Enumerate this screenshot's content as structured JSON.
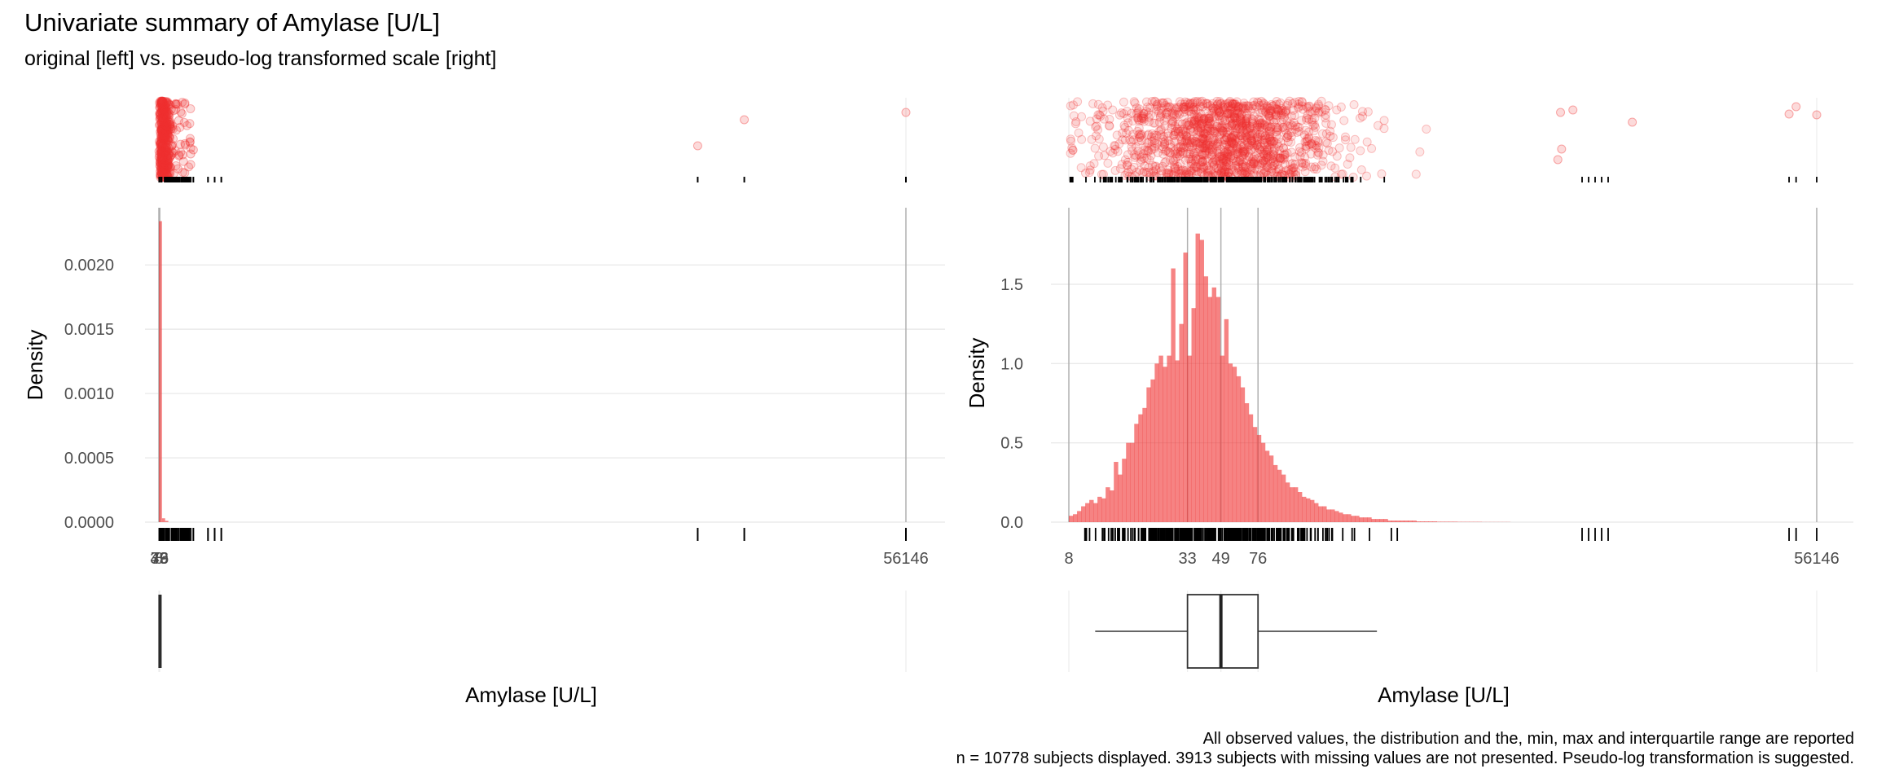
{
  "title": "Univariate summary of Amylase [U/L]",
  "subtitle": "original [left] vs. pseudo-log transformed scale [right]",
  "caption_line1": "All observed values, the distribution and the, min, max and interquartile range are reported",
  "caption_line2": "n = 10778 subjects displayed. 3913 subjects with missing values are not presented. Pseudo-log transformation is suggested.",
  "colors": {
    "fill": "#F03030",
    "grid": "#e6e6e6",
    "vline": "#b0b0b0",
    "rug": "#000000"
  },
  "chart_data": [
    {
      "panel": "left",
      "scale": "original",
      "type": "histogram",
      "xlabel": "Amylase [U/L]",
      "ylabel": "Density",
      "ylim": [
        0,
        0.0024
      ],
      "xlim": [
        8,
        56146
      ],
      "y_ticks": [
        "0.0000",
        "0.0005",
        "0.0010",
        "0.0015",
        "0.0020"
      ],
      "y_tick_values": [
        0,
        0.0005,
        0.001,
        0.0015,
        0.002
      ],
      "x_tick_labels": [
        "8",
        "33",
        "49",
        "76",
        "56146"
      ],
      "x_tick_values": [
        8,
        33,
        49,
        76,
        56146
      ],
      "bins": [
        {
          "x0": 8,
          "x1": 240,
          "density": 0.00234
        },
        {
          "x0": 240,
          "x1": 480,
          "density": 3e-05
        },
        {
          "x0": 480,
          "x1": 720,
          "density": 1e-05
        }
      ],
      "outliers": [
        1500,
        1800,
        2000,
        2400,
        2600,
        3700,
        4200,
        4700,
        40500,
        44000,
        56146
      ],
      "box": {
        "min": 8,
        "q1": 33,
        "median": 49,
        "q3": 76,
        "max": 56146
      },
      "vlines": [
        8,
        33,
        49,
        76,
        56146
      ]
    },
    {
      "panel": "right",
      "scale": "pseudo-log",
      "type": "histogram",
      "xlabel": "Amylase [U/L]",
      "ylabel": "Density",
      "ylim": [
        0,
        1.95
      ],
      "y_ticks": [
        "0.0",
        "0.5",
        "1.0",
        "1.5"
      ],
      "y_tick_values": [
        0,
        0.5,
        1.0,
        1.5
      ],
      "x_tick_labels": [
        "8",
        "33",
        "49",
        "76",
        "56146"
      ],
      "x_tick_values": [
        8,
        33,
        49,
        76,
        56146
      ],
      "bin_densities": [
        0.04,
        0.05,
        0.07,
        0.1,
        0.12,
        0.14,
        0.12,
        0.16,
        0.15,
        0.22,
        0.2,
        0.38,
        0.3,
        0.4,
        0.5,
        0.5,
        0.62,
        0.68,
        0.72,
        0.85,
        0.9,
        1.0,
        1.05,
        0.98,
        1.05,
        1.6,
        1.02,
        1.25,
        1.7,
        1.05,
        1.35,
        1.82,
        1.78,
        1.55,
        1.42,
        1.48,
        1.42,
        1.05,
        1.28,
        1.0,
        0.98,
        0.92,
        0.85,
        0.75,
        0.68,
        0.6,
        0.55,
        0.5,
        0.45,
        0.42,
        0.36,
        0.33,
        0.3,
        0.25,
        0.22,
        0.22,
        0.19,
        0.16,
        0.15,
        0.14,
        0.12,
        0.1,
        0.1,
        0.08,
        0.08,
        0.07,
        0.06,
        0.05,
        0.05,
        0.04,
        0.04,
        0.03,
        0.03,
        0.03,
        0.02,
        0.02,
        0.02,
        0.02,
        0.01,
        0.01,
        0.01,
        0.01,
        0.01,
        0.01,
        0.01,
        0.005,
        0.005,
        0.005,
        0.005,
        0.005,
        0.003,
        0.003,
        0.003,
        0.003,
        0.003,
        0.002,
        0.002,
        0.002,
        0.002,
        0.002,
        0.002,
        0.001,
        0.001,
        0.001,
        0.001,
        0.001,
        0.001,
        0.001
      ],
      "bin_range": [
        8,
        1500
      ],
      "box": {
        "min": 8,
        "lower_whisker": 11,
        "q1": 33,
        "median": 49,
        "q3": 76,
        "upper_whisker": 310,
        "max": 56146
      },
      "vlines": [
        8,
        33,
        49,
        76,
        56146
      ]
    }
  ]
}
